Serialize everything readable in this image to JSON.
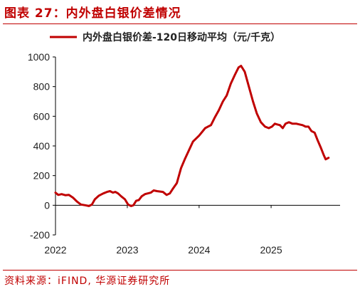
{
  "header": {
    "title": "图表 27：内外盘白银价差情况"
  },
  "footer": {
    "source": "资料来源：iFIND, 华源证券研究所"
  },
  "colors": {
    "accent": "#c00000",
    "series": "#c00000"
  },
  "chart_data": {
    "type": "line",
    "title": "图表 27：内外盘白银价差情况",
    "legend": {
      "position": "top",
      "entries": [
        "内外盘白银价差-120日移动平均（元/千克）"
      ]
    },
    "y_ticks": [
      "1000",
      "800",
      "600",
      "400",
      "200",
      "0",
      "-200"
    ],
    "x_ticks": [
      "2022",
      "2023",
      "2024",
      "2025"
    ],
    "ylim": [
      -200,
      1000
    ],
    "xlim": [
      "2022-01-01",
      "2025-12-10"
    ],
    "grid": false,
    "series": [
      {
        "name": "内外盘白银价差-120日移动平均（元/千克）",
        "color": "#c00000",
        "points": [
          [
            "2022-01-01",
            85
          ],
          [
            "2022-01-15",
            70
          ],
          [
            "2022-02-01",
            75
          ],
          [
            "2022-02-20",
            68
          ],
          [
            "2022-03-10",
            70
          ],
          [
            "2022-04-01",
            50
          ],
          [
            "2022-04-20",
            25
          ],
          [
            "2022-05-10",
            5
          ],
          [
            "2022-06-01",
            0
          ],
          [
            "2022-06-20",
            -5
          ],
          [
            "2022-07-05",
            5
          ],
          [
            "2022-07-20",
            40
          ],
          [
            "2022-08-10",
            65
          ],
          [
            "2022-09-01",
            80
          ],
          [
            "2022-09-20",
            90
          ],
          [
            "2022-10-05",
            95
          ],
          [
            "2022-10-20",
            85
          ],
          [
            "2022-11-01",
            90
          ],
          [
            "2022-11-15",
            80
          ],
          [
            "2022-12-01",
            60
          ],
          [
            "2022-12-20",
            40
          ],
          [
            "2023-01-05",
            5
          ],
          [
            "2023-01-20",
            -5
          ],
          [
            "2023-02-01",
            0
          ],
          [
            "2023-02-15",
            30
          ],
          [
            "2023-03-01",
            35
          ],
          [
            "2023-03-15",
            60
          ],
          [
            "2023-04-01",
            75
          ],
          [
            "2023-05-01",
            85
          ],
          [
            "2023-05-15",
            100
          ],
          [
            "2023-06-01",
            95
          ],
          [
            "2023-07-01",
            90
          ],
          [
            "2023-07-20",
            70
          ],
          [
            "2023-08-05",
            80
          ],
          [
            "2023-08-20",
            110
          ],
          [
            "2023-09-10",
            150
          ],
          [
            "2023-10-01",
            250
          ],
          [
            "2023-10-20",
            310
          ],
          [
            "2023-11-10",
            370
          ],
          [
            "2023-12-01",
            430
          ],
          [
            "2024-01-01",
            470
          ],
          [
            "2024-02-01",
            520
          ],
          [
            "2024-02-15",
            530
          ],
          [
            "2024-03-01",
            540
          ],
          [
            "2024-03-20",
            590
          ],
          [
            "2024-04-10",
            640
          ],
          [
            "2024-05-01",
            700
          ],
          [
            "2024-05-20",
            740
          ],
          [
            "2024-06-10",
            820
          ],
          [
            "2024-07-01",
            880
          ],
          [
            "2024-07-20",
            930
          ],
          [
            "2024-08-01",
            940
          ],
          [
            "2024-08-20",
            900
          ],
          [
            "2024-09-10",
            800
          ],
          [
            "2024-10-01",
            700
          ],
          [
            "2024-10-20",
            620
          ],
          [
            "2024-11-10",
            560
          ],
          [
            "2024-12-01",
            530
          ],
          [
            "2024-12-20",
            520
          ],
          [
            "2025-01-05",
            530
          ],
          [
            "2025-01-20",
            550
          ],
          [
            "2025-02-01",
            545
          ],
          [
            "2025-02-15",
            540
          ],
          [
            "2025-03-01",
            520
          ],
          [
            "2025-03-15",
            550
          ],
          [
            "2025-04-01",
            560
          ],
          [
            "2025-04-20",
            550
          ],
          [
            "2025-05-10",
            550
          ],
          [
            "2025-05-25",
            545
          ],
          [
            "2025-06-10",
            540
          ],
          [
            "2025-06-25",
            530
          ],
          [
            "2025-07-10",
            530
          ],
          [
            "2025-07-25",
            500
          ],
          [
            "2025-08-10",
            490
          ],
          [
            "2025-08-25",
            440
          ],
          [
            "2025-09-10",
            390
          ],
          [
            "2025-09-25",
            340
          ],
          [
            "2025-10-05",
            310
          ],
          [
            "2025-10-20",
            320
          ]
        ]
      }
    ]
  }
}
